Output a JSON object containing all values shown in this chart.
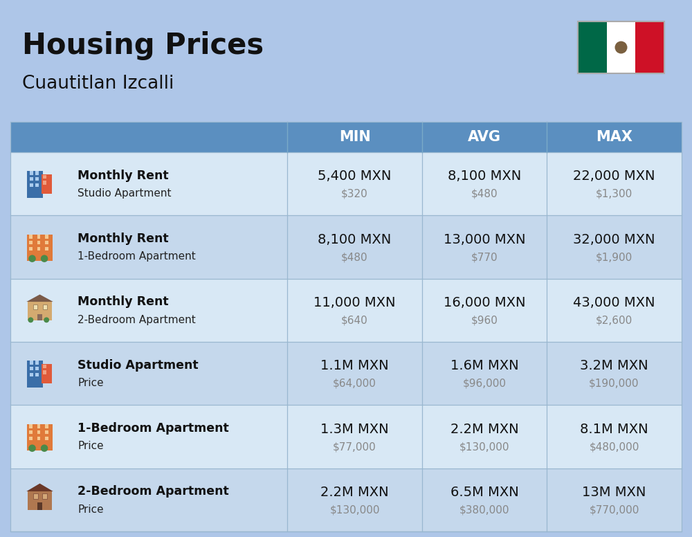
{
  "title": "Housing Prices",
  "subtitle": "Cuautitlan Izcalli",
  "bg_color": "#aec6e8",
  "header_color": "#5b8fc0",
  "header_text_color": "#ffffff",
  "row_colors": [
    "#d8e8f5",
    "#c5d8ec"
  ],
  "col_headers": [
    "MIN",
    "AVG",
    "MAX"
  ],
  "rows": [
    {
      "icon": "blue_building",
      "label_bold": "Monthly Rent",
      "label_normal": "Studio Apartment",
      "min_main": "5,400 MXN",
      "min_sub": "$320",
      "avg_main": "8,100 MXN",
      "avg_sub": "$480",
      "max_main": "22,000 MXN",
      "max_sub": "$1,300"
    },
    {
      "icon": "orange_building",
      "label_bold": "Monthly Rent",
      "label_normal": "1-Bedroom Apartment",
      "min_main": "8,100 MXN",
      "min_sub": "$480",
      "avg_main": "13,000 MXN",
      "avg_sub": "$770",
      "max_main": "32,000 MXN",
      "max_sub": "$1,900"
    },
    {
      "icon": "beige_building",
      "label_bold": "Monthly Rent",
      "label_normal": "2-Bedroom Apartment",
      "min_main": "11,000 MXN",
      "min_sub": "$640",
      "avg_main": "16,000 MXN",
      "avg_sub": "$960",
      "max_main": "43,000 MXN",
      "max_sub": "$2,600"
    },
    {
      "icon": "blue_building",
      "label_bold": "Studio Apartment",
      "label_normal": "Price",
      "min_main": "1.1M MXN",
      "min_sub": "$64,000",
      "avg_main": "1.6M MXN",
      "avg_sub": "$96,000",
      "max_main": "3.2M MXN",
      "max_sub": "$190,000"
    },
    {
      "icon": "orange_building",
      "label_bold": "1-Bedroom Apartment",
      "label_normal": "Price",
      "min_main": "1.3M MXN",
      "min_sub": "$77,000",
      "avg_main": "2.2M MXN",
      "avg_sub": "$130,000",
      "max_main": "8.1M MXN",
      "max_sub": "$480,000"
    },
    {
      "icon": "brown_building",
      "label_bold": "2-Bedroom Apartment",
      "label_normal": "Price",
      "min_main": "2.2M MXN",
      "min_sub": "$130,000",
      "avg_main": "6.5M MXN",
      "avg_sub": "$380,000",
      "max_main": "13M MXN",
      "max_sub": "$770,000"
    }
  ],
  "icon_colors": {
    "blue_building": {
      "body": "#3a6ea8",
      "accent": "#e05a3a"
    },
    "orange_building": {
      "body": "#e07a3a",
      "accent": "#4a8a4a"
    },
    "beige_building": {
      "body": "#d4aa70",
      "accent": "#8a6a5a",
      "roof": "#7a5a48"
    },
    "brown_building": {
      "body": "#b07850",
      "accent": "#7a4838",
      "roof": "#6a3828"
    }
  },
  "flag_green": "#006847",
  "flag_white": "#ffffff",
  "flag_red": "#ce1126"
}
